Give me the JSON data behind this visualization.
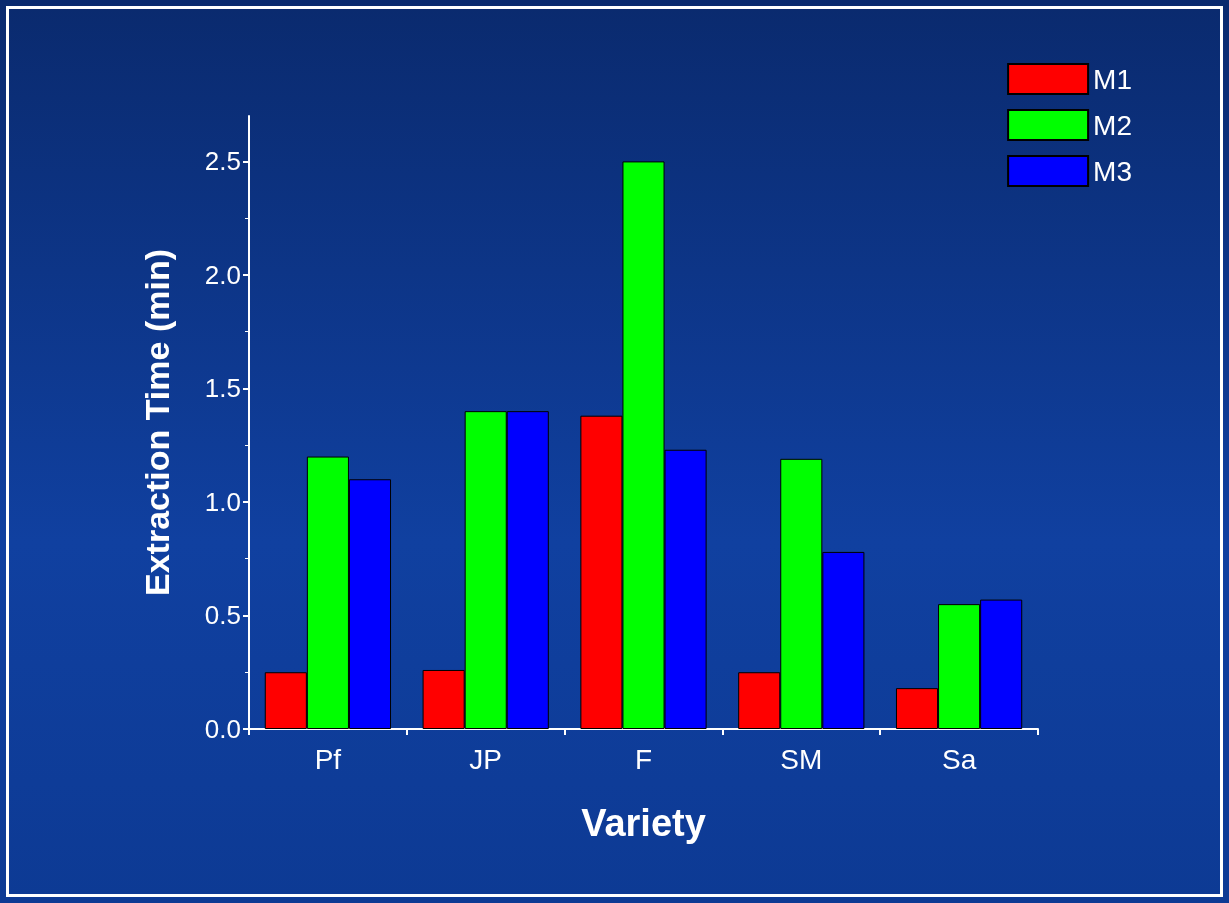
{
  "chart_data": {
    "type": "bar",
    "xlabel": "Variety",
    "ylabel": "Extraction Time (min)",
    "categories": [
      "Pf",
      "JP",
      "F",
      "SM",
      "Sa"
    ],
    "series": [
      {
        "name": "M1",
        "color": "#ff0000",
        "values": [
          0.25,
          0.26,
          1.38,
          0.25,
          0.18
        ]
      },
      {
        "name": "M2",
        "color": "#00ff00",
        "values": [
          1.2,
          1.4,
          2.5,
          1.19,
          0.55
        ]
      },
      {
        "name": "M3",
        "color": "#0000ff",
        "values": [
          1.1,
          1.4,
          1.23,
          0.78,
          0.57
        ]
      }
    ],
    "ylim": [
      0,
      2.7
    ],
    "yticks": [
      {
        "value": 0,
        "label": "0.0"
      },
      0.5,
      {
        "value": 1,
        "label": "1.0"
      },
      1.5,
      {
        "value": 2,
        "label": "2.0"
      },
      2.5
    ],
    "grid": false,
    "legend": "top right"
  }
}
